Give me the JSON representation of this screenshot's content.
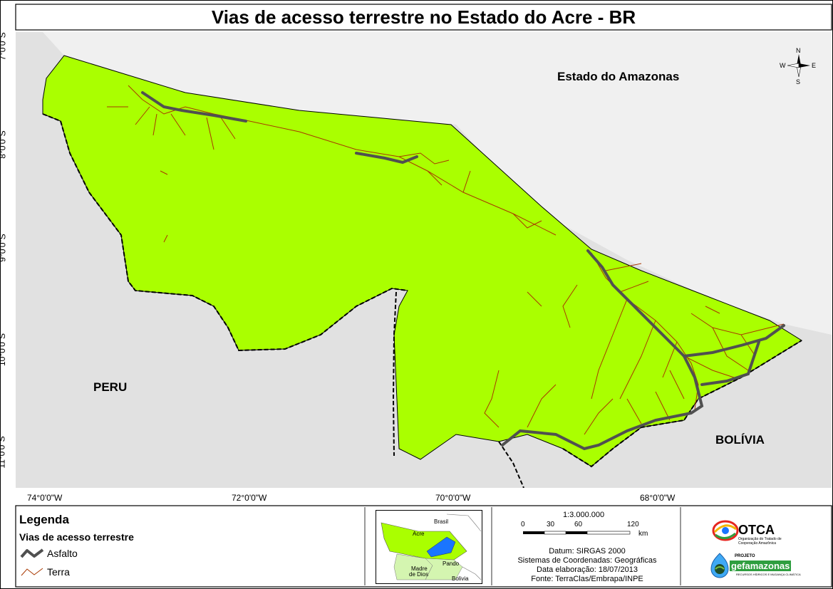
{
  "map": {
    "title": "Vias de acesso terrestre no Estado do Acre - BR",
    "labels": {
      "amazonas": "Estado do Amazonas",
      "peru": "PERU",
      "bolivia": "BOLÍVIA"
    },
    "lat_ticks": [
      "7°0'0\"S",
      "8°0'0\"S",
      "9°0'0\"S",
      "10°0'0\"S",
      "11°0'0\"S"
    ],
    "lon_ticks": [
      "74°0'0\"W",
      "72°0'0\"W",
      "70°0'0\"W",
      "68°0'0\"W"
    ],
    "compass": {
      "n": "N",
      "s": "S",
      "e": "E",
      "w": "W"
    },
    "colors": {
      "acre": "#aaff00",
      "neighbor": "#e1e1e1",
      "asphalt": "#505050",
      "dirt_road": "#a83800"
    }
  },
  "legend": {
    "title": "Legenda",
    "subtitle": "Vias de acesso terrestre",
    "items": [
      {
        "label": "Asfalto",
        "symbol": "asphalt"
      },
      {
        "label": "Terra",
        "symbol": "dirt_road"
      }
    ]
  },
  "inset": {
    "labels": {
      "brasil": "Brasil",
      "acre": "Acre",
      "madre": "Madre",
      "dedios": "de Dios",
      "pando": "Pando",
      "bolivia": "Bolivia"
    }
  },
  "scale": {
    "ratio": "1:3.000.000",
    "ticks": [
      "0",
      "30",
      "60",
      "120"
    ],
    "unit": "km"
  },
  "info": {
    "datum": "Datum: SIRGAS 2000",
    "system": "Sistemas de Coordenadas: Geográficas",
    "date": "Data elaboração: 18/07/2013",
    "source": "Fonte: TerraClas/Embrapa/INPE"
  },
  "logos": {
    "otca": "OTCA",
    "otca_sub": "Organização do Tratado de Cooperação Amazônica",
    "projeto": "PROJETO",
    "gef": "gefamazonas",
    "gef_sub": "RECURSOS HÍDRICOS E MUDANÇA CLIMÁTICA"
  }
}
